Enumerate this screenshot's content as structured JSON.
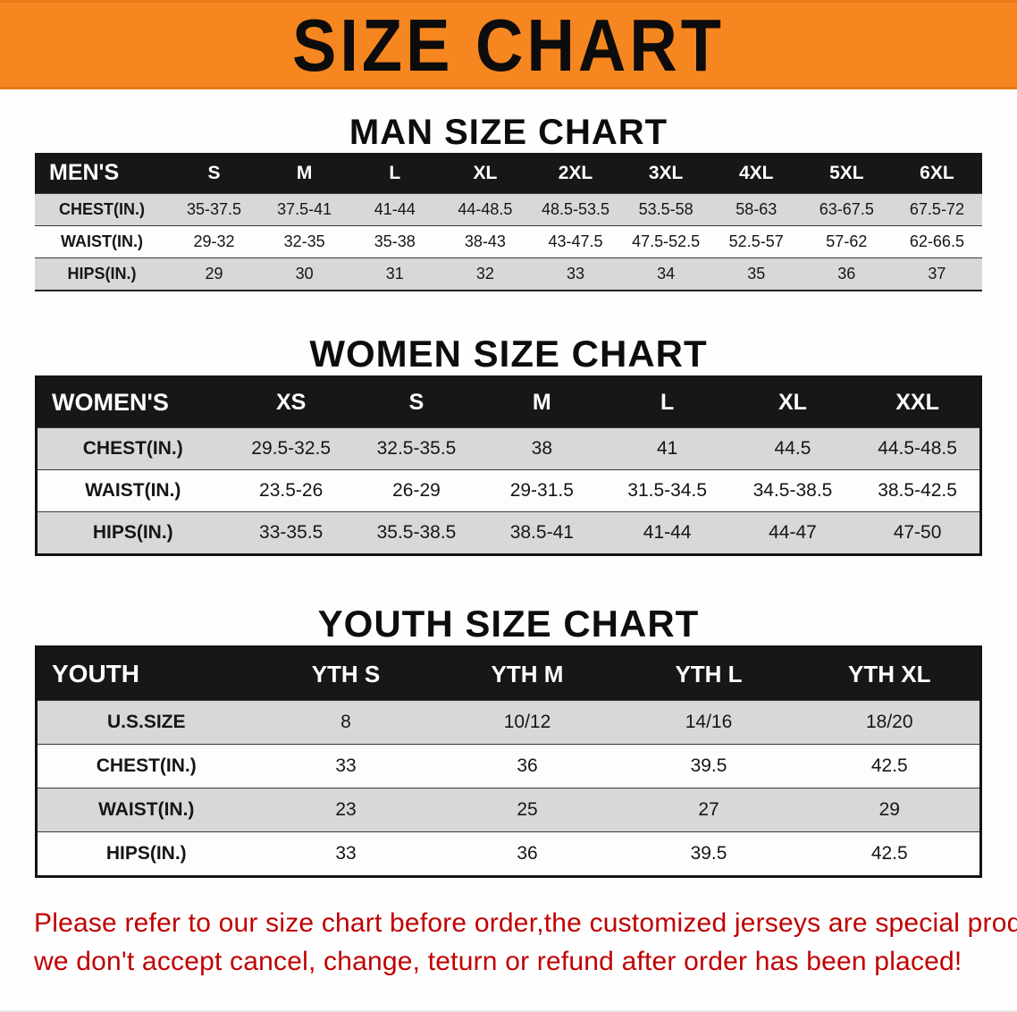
{
  "banner": {
    "title": "SIZE CHART",
    "bg_color": "#f6861f",
    "text_color": "#0c0c0c"
  },
  "sections": {
    "men": {
      "heading": "MAN SIZE CHART",
      "table": {
        "header": [
          "MEN'S",
          "S",
          "M",
          "L",
          "XL",
          "2XL",
          "3XL",
          "4XL",
          "5XL",
          "6XL"
        ],
        "rows": [
          {
            "label": "CHEST(IN.)",
            "values": [
              "35-37.5",
              "37.5-41",
              "41-44",
              "44-48.5",
              "48.5-53.5",
              "53.5-58",
              "58-63",
              "63-67.5",
              "67.5-72"
            ]
          },
          {
            "label": "WAIST(IN.)",
            "values": [
              "29-32",
              "32-35",
              "35-38",
              "38-43",
              "43-47.5",
              "47.5-52.5",
              "52.5-57",
              "57-62",
              "62-66.5"
            ]
          },
          {
            "label": "HIPS(IN.)",
            "values": [
              "29",
              "30",
              "31",
              "32",
              "33",
              "34",
              "35",
              "36",
              "37"
            ]
          }
        ]
      }
    },
    "women": {
      "heading": "WOMEN SIZE CHART",
      "table": {
        "header": [
          "WOMEN'S",
          "XS",
          "S",
          "M",
          "L",
          "XL",
          "XXL"
        ],
        "rows": [
          {
            "label": "CHEST(IN.)",
            "values": [
              "29.5-32.5",
              "32.5-35.5",
              "38",
              "41",
              "44.5",
              "44.5-48.5"
            ]
          },
          {
            "label": "WAIST(IN.)",
            "values": [
              "23.5-26",
              "26-29",
              "29-31.5",
              "31.5-34.5",
              "34.5-38.5",
              "38.5-42.5"
            ]
          },
          {
            "label": "HIPS(IN.)",
            "values": [
              "33-35.5",
              "35.5-38.5",
              "38.5-41",
              "41-44",
              "44-47",
              "47-50"
            ]
          }
        ]
      }
    },
    "youth": {
      "heading": "YOUTH SIZE CHART",
      "table": {
        "header": [
          "YOUTH",
          "YTH S",
          "YTH M",
          "YTH L",
          "YTH XL"
        ],
        "rows": [
          {
            "label": "U.S.SIZE",
            "values": [
              "8",
              "10/12",
              "14/16",
              "18/20"
            ]
          },
          {
            "label": "CHEST(IN.)",
            "values": [
              "33",
              "36",
              "39.5",
              "42.5"
            ]
          },
          {
            "label": "WAIST(IN.)",
            "values": [
              "23",
              "25",
              "27",
              "29"
            ]
          },
          {
            "label": "HIPS(IN.)",
            "values": [
              "33",
              "36",
              "39.5",
              "42.5"
            ]
          }
        ]
      }
    }
  },
  "footer": {
    "line1": "Please refer to our size chart before order,the customized jerseys are special products,",
    "line2": "we don't accept cancel, change, teturn or refund after order has been placed!",
    "text_color": "#c00000"
  }
}
